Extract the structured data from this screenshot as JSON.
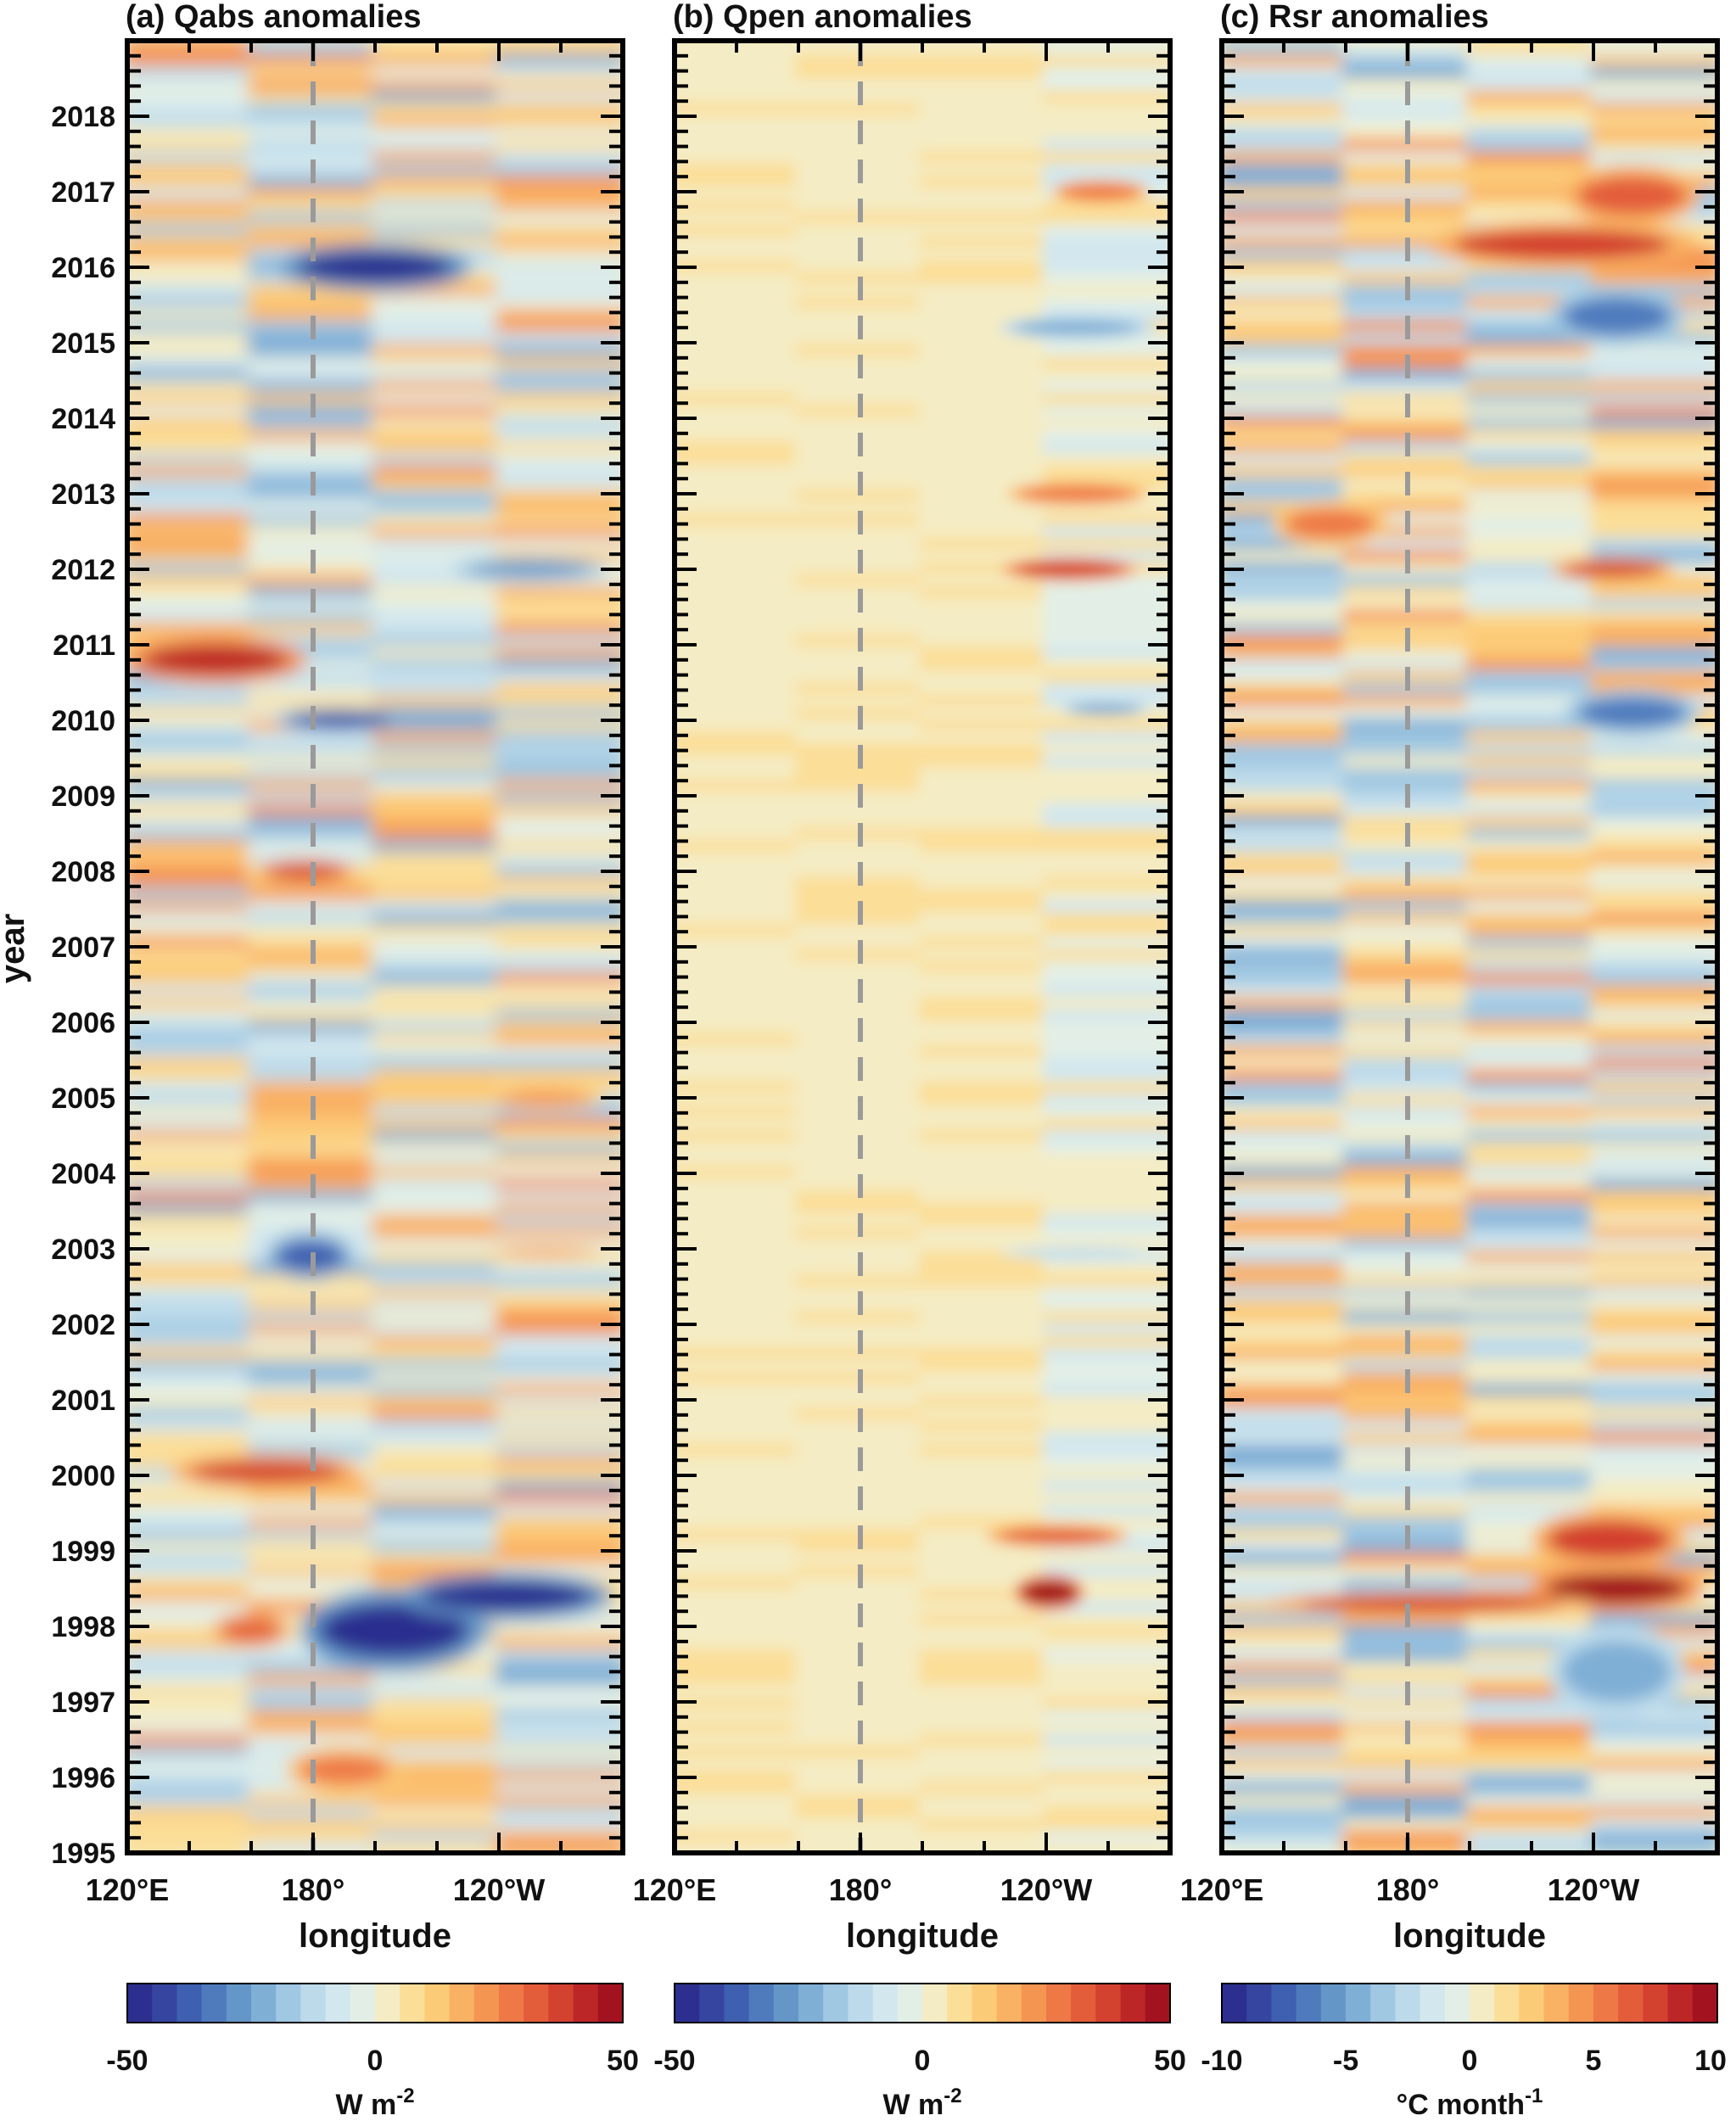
{
  "chart_data": [
    {
      "type": "heatmap",
      "panel": "a",
      "title": "(a) Qabs anomalies",
      "xlabel": "longitude",
      "ylabel": "year",
      "x_ticks": [
        "120°E",
        "180°",
        "120°W"
      ],
      "y_ticks": [
        "1995",
        "1996",
        "1997",
        "1998",
        "1999",
        "2000",
        "2001",
        "2002",
        "2003",
        "2004",
        "2005",
        "2006",
        "2007",
        "2008",
        "2009",
        "2010",
        "2011",
        "2012",
        "2013",
        "2014",
        "2015",
        "2016",
        "2017",
        "2018"
      ],
      "xlim": [
        120,
        280
      ],
      "ylim": [
        1995,
        2019
      ],
      "reference_line": {
        "x": 180,
        "style": "dashed",
        "color": "#9a9a9a"
      },
      "colorbar": {
        "min": -50,
        "max": 50,
        "ticks": [
          "-50",
          "0",
          "50"
        ],
        "label": "W m",
        "label_sup": "-2",
        "levels": 20
      },
      "features": [
        {
          "lon": [
            182,
            230
          ],
          "year": [
            1997.6,
            1998.3
          ],
          "value": -50
        },
        {
          "lon": [
            215,
            270
          ],
          "year": [
            1998.2,
            1998.6
          ],
          "value": -50
        },
        {
          "lon": [
            175,
            225
          ],
          "year": [
            2015.8,
            2016.2
          ],
          "value": -48
        },
        {
          "lon": [
            172,
            205
          ],
          "year": [
            2009.9,
            2010.1
          ],
          "value": -45
        },
        {
          "lon": [
            168,
            190
          ],
          "year": [
            2002.7,
            2003.1
          ],
          "value": -40
        },
        {
          "lon": [
            125,
            172
          ],
          "year": [
            2010.6,
            2011.0
          ],
          "value": 40
        },
        {
          "lon": [
            140,
            190
          ],
          "year": [
            1999.9,
            2000.2
          ],
          "value": 35
        },
        {
          "lon": [
            165,
            190
          ],
          "year": [
            2007.9,
            2008.1
          ],
          "value": 38
        },
        {
          "lon": [
            150,
            170
          ],
          "year": [
            1997.8,
            1998.1
          ],
          "value": 30
        },
        {
          "lon": [
            240,
            270
          ],
          "year": [
            2002.9,
            2003.0
          ],
          "value": 22
        },
        {
          "lon": [
            240,
            270
          ],
          "year": [
            2004.9,
            2005.1
          ],
          "value": 22
        },
        {
          "lon": [
            230,
            270
          ],
          "year": [
            2011.9,
            2012.1
          ],
          "value": -30
        },
        {
          "lon": [
            175,
            205
          ],
          "year": [
            1995.9,
            1996.3
          ],
          "value": 25
        }
      ]
    },
    {
      "type": "heatmap",
      "panel": "b",
      "title": "(b) Qpen anomalies",
      "xlabel": "longitude",
      "x_ticks": [
        "120°E",
        "180°",
        "120°W"
      ],
      "y_ticks": [],
      "xlim": [
        120,
        280
      ],
      "ylim": [
        1995,
        2019
      ],
      "reference_line": {
        "x": 180,
        "style": "dashed",
        "color": "#9a9a9a"
      },
      "colorbar": {
        "min": -50,
        "max": 50,
        "ticks": [
          "-50",
          "0",
          "50"
        ],
        "label": "W m",
        "label_sup": "-2",
        "levels": 20
      },
      "features": [
        {
          "lon": [
            232,
            250
          ],
          "year": [
            1998.3,
            1998.6
          ],
          "value": 48
        },
        {
          "lon": [
            225,
            262
          ],
          "year": [
            1999.1,
            1999.3
          ],
          "value": 32
        },
        {
          "lon": [
            230,
            265
          ],
          "year": [
            2011.9,
            2012.1
          ],
          "value": 38
        },
        {
          "lon": [
            232,
            268
          ],
          "year": [
            2012.9,
            2013.1
          ],
          "value": 28
        },
        {
          "lon": [
            245,
            270
          ],
          "year": [
            2016.9,
            2017.1
          ],
          "value": 28
        },
        {
          "lon": [
            230,
            270
          ],
          "year": [
            2015.1,
            2015.3
          ],
          "value": -22
        },
        {
          "lon": [
            248,
            270
          ],
          "year": [
            2010.1,
            2010.2
          ],
          "value": -28
        },
        {
          "lon": [
            230,
            270
          ],
          "year": [
            2002.9,
            2003.0
          ],
          "value": -15
        }
      ]
    },
    {
      "type": "heatmap",
      "panel": "c",
      "title": "(c) Rsr anomalies",
      "xlabel": "longitude",
      "x_ticks": [
        "120°E",
        "180°",
        "120°W"
      ],
      "y_ticks": [],
      "xlim": [
        120,
        280
      ],
      "ylim": [
        1995,
        2019
      ],
      "reference_line": {
        "x": 180,
        "style": "dashed",
        "color": "#9a9a9a"
      },
      "colorbar": {
        "min": -10,
        "max": 10,
        "ticks": [
          "-10",
          "-5",
          "0",
          "5",
          "10"
        ],
        "label": "°C month",
        "label_sup": "-1",
        "levels": 20
      },
      "features": [
        {
          "lon": [
            225,
            270
          ],
          "year": [
            1998.3,
            1998.7
          ],
          "value": 9
        },
        {
          "lon": [
            145,
            230
          ],
          "year": [
            1998.2,
            1998.4
          ],
          "value": 7
        },
        {
          "lon": [
            225,
            265
          ],
          "year": [
            1998.9,
            1999.4
          ],
          "value": 7
        },
        {
          "lon": [
            195,
            265
          ],
          "year": [
            2016.1,
            2016.5
          ],
          "value": 7
        },
        {
          "lon": [
            235,
            270
          ],
          "year": [
            2016.7,
            2017.2
          ],
          "value": 6
        },
        {
          "lon": [
            230,
            265
          ],
          "year": [
            2015.1,
            2015.6
          ],
          "value": -7
        },
        {
          "lon": [
            235,
            270
          ],
          "year": [
            2009.9,
            2010.3
          ],
          "value": -7
        },
        {
          "lon": [
            230,
            265
          ],
          "year": [
            1997.0,
            1997.8
          ],
          "value": -5
        },
        {
          "lon": [
            230,
            262
          ],
          "year": [
            2011.9,
            2012.1
          ],
          "value": 7
        },
        {
          "lon": [
            140,
            170
          ],
          "year": [
            2012.4,
            2012.8
          ],
          "value": 5
        }
      ]
    }
  ]
}
